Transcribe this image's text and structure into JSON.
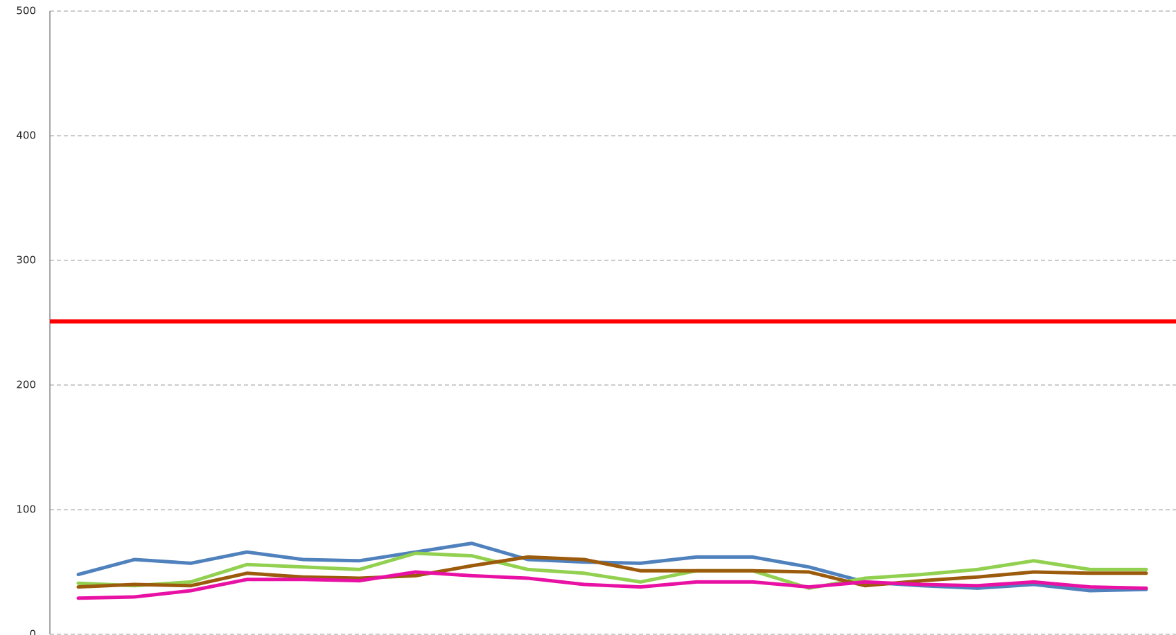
{
  "chart_data": {
    "type": "line",
    "categories": [
      null,
      null,
      null,
      null,
      null,
      null,
      null,
      null,
      null,
      null,
      null,
      null,
      null,
      null,
      null,
      null,
      null,
      null,
      null,
      null
    ],
    "series": [
      {
        "color": "#4f81bd",
        "values": [
          48,
          60,
          57,
          66,
          60,
          59,
          66,
          73,
          60,
          58,
          57,
          62,
          62,
          54,
          42,
          39,
          37,
          40,
          35,
          36
        ]
      },
      {
        "color": "#92d050",
        "values": [
          41,
          39,
          42,
          56,
          54,
          52,
          65,
          63,
          52,
          49,
          42,
          51,
          51,
          37,
          45,
          48,
          52,
          59,
          52,
          52
        ]
      },
      {
        "color": "#9c5b0c",
        "values": [
          38,
          40,
          39,
          49,
          46,
          45,
          47,
          55,
          62,
          60,
          51,
          51,
          51,
          50,
          39,
          43,
          46,
          50,
          49,
          49
        ]
      },
      {
        "color": "#e811a4",
        "values": [
          29,
          30,
          35,
          44,
          44,
          43,
          50,
          47,
          45,
          40,
          38,
          42,
          42,
          38,
          42,
          40,
          39,
          42,
          38,
          37
        ]
      }
    ],
    "reference_line": {
      "value": 251,
      "color": "#ff0000"
    },
    "ylim": [
      0,
      500
    ],
    "yticks": [
      0,
      100,
      200,
      300,
      400,
      500
    ],
    "grid": true
  }
}
